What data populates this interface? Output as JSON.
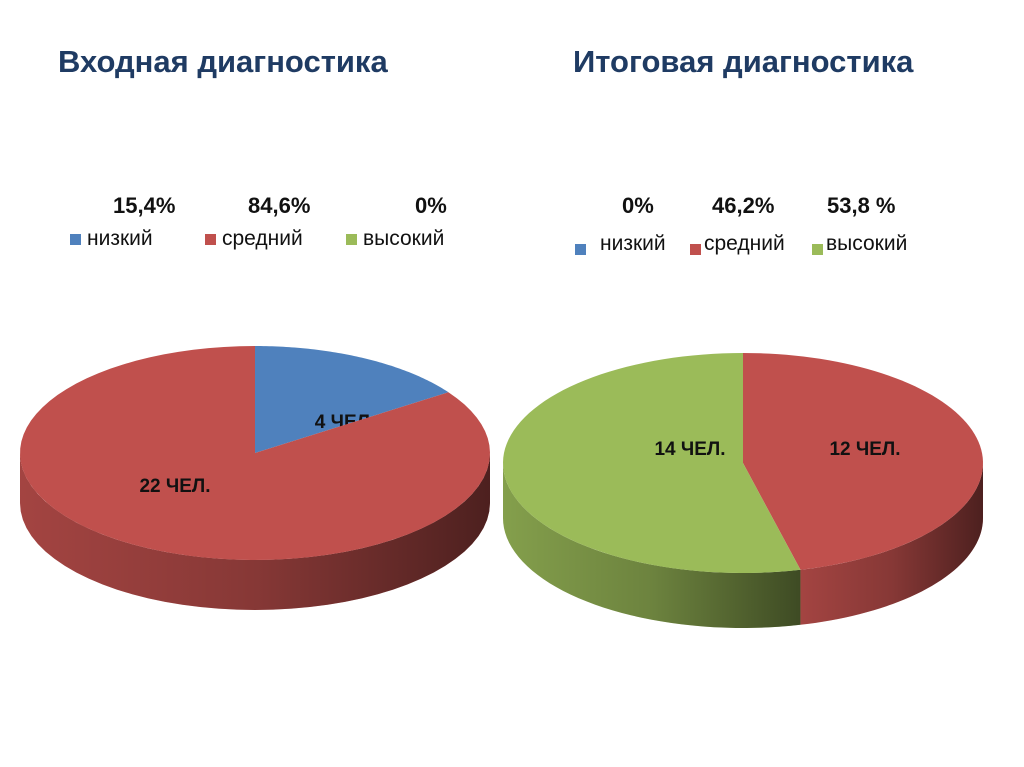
{
  "colors": {
    "low": "#4F81BD",
    "mid": "#C0504D",
    "high": "#9BBB59"
  },
  "chart_data": [
    {
      "type": "pie",
      "title": "Входная диагностика",
      "categories": [
        "низкий",
        "средний",
        "высокий"
      ],
      "values": [
        4,
        22,
        0
      ],
      "percent_labels": [
        "15,4%",
        "84,6%",
        "0%"
      ],
      "data_labels": [
        "4 ЧЕЛ.",
        "22 ЧЕЛ.",
        ""
      ],
      "legend": "top"
    },
    {
      "type": "pie",
      "title": "Итоговая диагностика",
      "categories": [
        "низкий",
        "средний",
        "высокий"
      ],
      "values": [
        0,
        12,
        14
      ],
      "percent_labels": [
        "0%",
        "46,2%",
        "53,8 %"
      ],
      "data_labels": [
        "",
        "12 ЧЕЛ.",
        "14 ЧЕЛ."
      ],
      "legend": "top"
    }
  ]
}
